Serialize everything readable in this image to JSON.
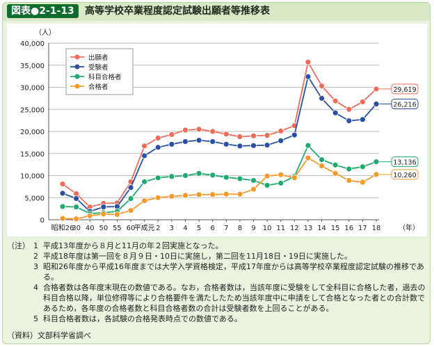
{
  "figure": {
    "label": "図表●2-1-13",
    "title": "高等学校卒業程度認定試験出願者等推移表"
  },
  "chart_data": {
    "type": "line",
    "ylabel": "（人）",
    "xlabel": "（年）",
    "ylim": [
      0,
      40000
    ],
    "yticks": [
      0,
      5000,
      10000,
      15000,
      20000,
      25000,
      30000,
      35000,
      40000
    ],
    "ytick_labels": [
      "0",
      "5,000",
      "10,000",
      "15,000",
      "20,000",
      "25,000",
      "30,000",
      "35,000",
      "40,000"
    ],
    "x": [
      "昭和26",
      "30",
      "40",
      "50",
      "55",
      "60",
      "平成元",
      "2",
      "3",
      "4",
      "5",
      "6",
      "7",
      "8",
      "9",
      "10",
      "11",
      "12",
      "13",
      "14",
      "15",
      "16",
      "17",
      "18"
    ],
    "grid": "horizontal",
    "legend_position": "top-left",
    "series": [
      {
        "name": "出願者",
        "color": "#f06a5a",
        "values": [
          8100,
          5900,
          2900,
          3700,
          3800,
          8600,
          16700,
          18500,
          19300,
          20300,
          20500,
          20000,
          19400,
          18800,
          19000,
          19100,
          20100,
          21300,
          35700,
          30300,
          26900,
          25000,
          26700,
          29619
        ],
        "end_label": "29,619"
      },
      {
        "name": "受験者",
        "color": "#2a4fa3",
        "values": [
          6000,
          4800,
          1900,
          2900,
          3000,
          7300,
          14500,
          16400,
          17100,
          17700,
          18000,
          17700,
          17100,
          16700,
          16800,
          16900,
          17900,
          19200,
          32400,
          27500,
          24200,
          22400,
          22700,
          26216
        ],
        "end_label": "26,216"
      },
      {
        "name": "科目合格者",
        "color": "#1faa70",
        "values": [
          3000,
          2900,
          1400,
          1600,
          1900,
          4800,
          8600,
          9500,
          9800,
          10000,
          10500,
          10100,
          9600,
          9300,
          8900,
          7800,
          8300,
          9800,
          16800,
          13600,
          12400,
          11500,
          12000,
          13136
        ],
        "end_label": "13,136"
      },
      {
        "name": "合格者",
        "color": "#f59a2a",
        "values": [
          300,
          200,
          900,
          1300,
          1200,
          2100,
          4300,
          5000,
          5300,
          5500,
          5700,
          5700,
          5800,
          5800,
          6900,
          9900,
          10200,
          9500,
          14000,
          12200,
          10500,
          8900,
          8500,
          10260
        ],
        "end_label": "10,260"
      }
    ]
  },
  "notes": {
    "head": "（注）",
    "items": [
      {
        "num": "1",
        "text": "平成13年度から８月と11月の年２回実施となった。"
      },
      {
        "num": "2",
        "text": "平成18年度は第一回を８月９日・10日に実施し，第二回を11月18日・19日に実施した。"
      },
      {
        "num": "3",
        "text": "昭和26年度から平成16年度までは大学入学資格検定，平成17年度からは高等学校卒業程度認定試験の推移である。"
      },
      {
        "num": "4",
        "text": "合格者数は各年度末現在の数値である。なお，合格者数は，当該年度に受験をして全科目に合格した者，過去の科目合格以降，単位修得等により合格要件を満たしたため当該年度中に申請をして合格となった者との合計数であるため，各年度の合格者数と科目合格者数の合計は受験者数を上回ることがある。"
      },
      {
        "num": "5",
        "text": "科目合格者数は，各試験の合格発表時点での数値である。"
      }
    ],
    "source_head": "（資料）",
    "source_text": "文部科学省調べ"
  }
}
